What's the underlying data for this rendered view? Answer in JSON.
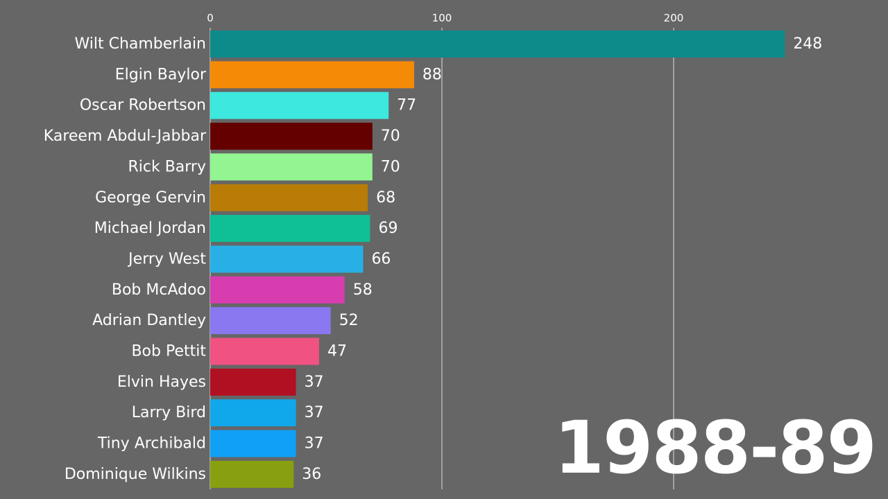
{
  "chart_data": {
    "type": "bar",
    "orientation": "horizontal",
    "period": "1988-89",
    "xlim": [
      0,
      280
    ],
    "x_ticks": [
      0,
      100,
      200
    ],
    "grid": true,
    "categories": [
      "Wilt Chamberlain",
      "Elgin Baylor",
      "Oscar Robertson",
      "Kareem Abdul-Jabbar",
      "Rick Barry",
      "George Gervin",
      "Michael Jordan",
      "Jerry West",
      "Bob McAdoo",
      "Adrian Dantley",
      "Bob Pettit",
      "Elvin Hayes",
      "Larry Bird",
      "Tiny Archibald",
      "Dominique Wilkins"
    ],
    "values": [
      248,
      88,
      77,
      70,
      70,
      68,
      69,
      66,
      58,
      52,
      47,
      37,
      37,
      37,
      36
    ],
    "colors": [
      "#0d8a8a",
      "#f58a07",
      "#3de8df",
      "#650000",
      "#92f592",
      "#b87c07",
      "#0fbf96",
      "#28b0e6",
      "#d83db0",
      "#8978f0",
      "#f05282",
      "#b01022",
      "#10a8ea",
      "#10a0f5",
      "#88a00f"
    ],
    "background": "#666666",
    "gridline_color": "#dddddd"
  }
}
